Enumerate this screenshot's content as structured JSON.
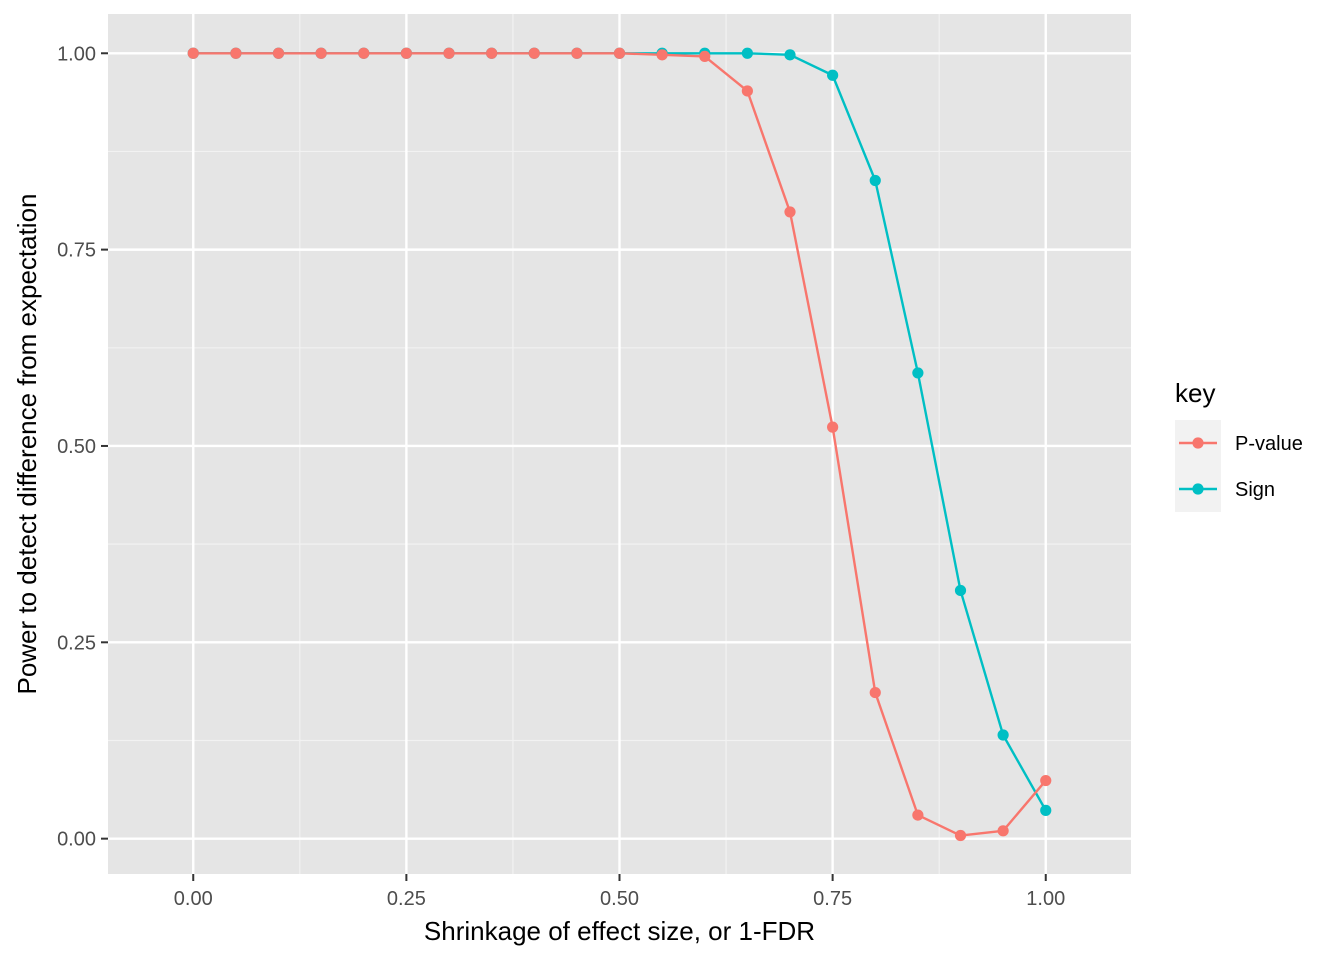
{
  "chart_data": {
    "type": "line",
    "xlabel": "Shrinkage of effect size, or 1-FDR",
    "ylabel": "Power to detect difference from expectation",
    "xlim": [
      -0.1,
      1.1
    ],
    "ylim": [
      -0.045,
      1.05
    ],
    "x_ticks": [
      0.0,
      0.25,
      0.5,
      0.75,
      1.0
    ],
    "x_tick_labels": [
      "0.00",
      "0.25",
      "0.50",
      "0.75",
      "1.00"
    ],
    "y_ticks": [
      0.0,
      0.25,
      0.5,
      0.75,
      1.0
    ],
    "y_tick_labels": [
      "0.00",
      "0.25",
      "0.50",
      "0.75",
      "1.00"
    ],
    "grid": true,
    "panel_background": "#e5e5e5",
    "legend": {
      "title": "key",
      "placement": "right"
    },
    "x": [
      0.0,
      0.05,
      0.1,
      0.15,
      0.2,
      0.25,
      0.3,
      0.35,
      0.4,
      0.45,
      0.5,
      0.55,
      0.6,
      0.65,
      0.7,
      0.75,
      0.8,
      0.85,
      0.9,
      0.95,
      1.0
    ],
    "series": [
      {
        "name": "Sign",
        "color": "#00bfc4",
        "values": [
          1.0,
          1.0,
          1.0,
          1.0,
          1.0,
          1.0,
          1.0,
          1.0,
          1.0,
          1.0,
          1.0,
          1.0,
          1.0,
          1.0,
          0.998,
          0.972,
          0.838,
          0.593,
          0.316,
          0.132,
          0.036
        ]
      },
      {
        "name": "P-value",
        "color": "#f8766d",
        "values": [
          1.0,
          1.0,
          1.0,
          1.0,
          1.0,
          1.0,
          1.0,
          1.0,
          1.0,
          1.0,
          1.0,
          0.998,
          0.996,
          0.952,
          0.798,
          0.524,
          0.186,
          0.03,
          0.004,
          0.01,
          0.074
        ]
      }
    ]
  }
}
